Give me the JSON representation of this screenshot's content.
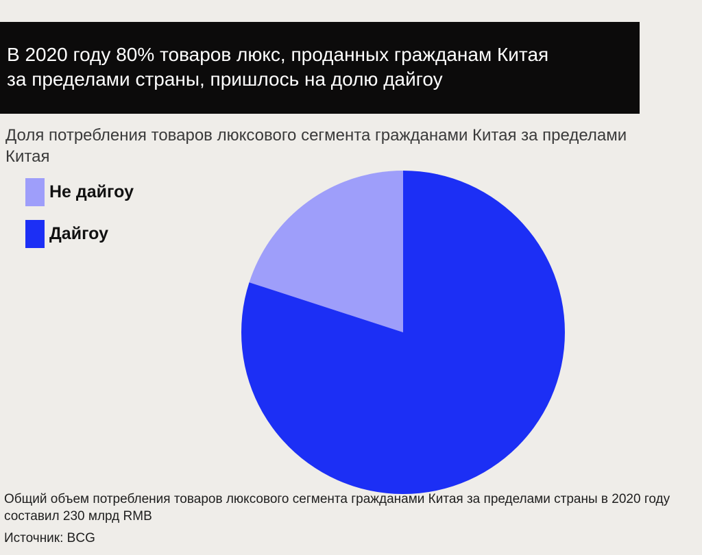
{
  "header": {
    "line1": "В 2020 году 80% товаров люкс, проданных гражданам Китая",
    "line2": "за пределами страны, пришлось на долю дайгоу"
  },
  "chart_data": {
    "type": "pie",
    "title": "Доля потребления товаров люксового сегмента гражданами Китая за пределами Китая",
    "categories": [
      "Не дайгоу",
      "Дайгоу"
    ],
    "values": [
      20,
      80
    ],
    "unit": "%",
    "colors": [
      "#9e9efa",
      "#1c2ff5"
    ],
    "legend_position": "top-left",
    "start_angle_deg": 0,
    "direction": "counterclockwise"
  },
  "legend": {
    "items": [
      {
        "label": "Не дайгоу",
        "color": "#9e9efa"
      },
      {
        "label": "Дайгоу",
        "color": "#1c2ff5"
      }
    ]
  },
  "footnote": "Общий объем потребления товаров люксового сегмента гражданами Китая за пределами страны в 2020 году составил 230 млрд RMB",
  "source": "Источник: BCG"
}
